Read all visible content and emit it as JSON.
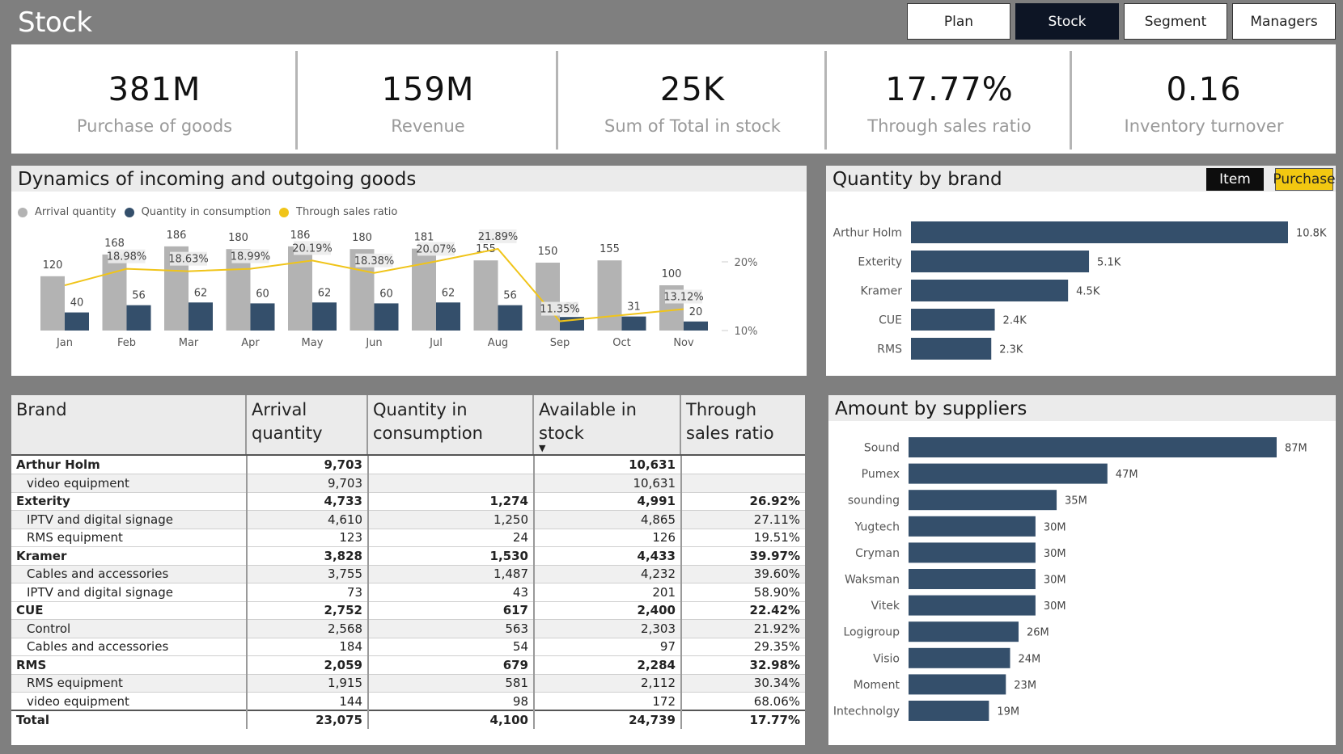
{
  "page": {
    "title": "Stock"
  },
  "nav": [
    {
      "label": "Plan",
      "active": false
    },
    {
      "label": "Stock",
      "active": true
    },
    {
      "label": "Segment",
      "active": false
    },
    {
      "label": "Managers",
      "active": false
    }
  ],
  "kpis": [
    {
      "value": "381M",
      "label": "Purchase of goods"
    },
    {
      "value": "159M",
      "label": "Revenue"
    },
    {
      "value": "25K",
      "label": "Sum of Total in stock"
    },
    {
      "value": "17.77%",
      "label": "Through sales ratio"
    },
    {
      "value": "0.16",
      "label": "Inventory turnover"
    }
  ],
  "colors": {
    "arrival": "#b3b3b3",
    "consumption": "#344f6b",
    "ratio": "#f0c419",
    "bar": "#344f6b",
    "toggle_active": "#0d0d0d",
    "toggle_alt": "#f2c811"
  },
  "dynamics": {
    "title": "Dynamics of incoming and outgoing goods",
    "legend": [
      "Arrival quantity",
      "Quantity in consumption",
      "Through sales ratio"
    ],
    "chart_data": {
      "type": "bar",
      "categories": [
        "Jan",
        "Feb",
        "Mar",
        "Apr",
        "May",
        "Jun",
        "Jul",
        "Aug",
        "Sep",
        "Oct",
        "Nov"
      ],
      "series": [
        {
          "name": "Arrival quantity",
          "values": [
            120,
            168,
            186,
            180,
            186,
            180,
            181,
            155,
            150,
            155,
            100
          ]
        },
        {
          "name": "Quantity in consumption",
          "values": [
            40,
            56,
            62,
            60,
            62,
            60,
            62,
            56,
            30,
            31,
            20
          ]
        },
        {
          "name": "Through sales ratio",
          "values": [
            null,
            18.98,
            18.63,
            18.99,
            20.19,
            18.38,
            20.07,
            21.89,
            11.35,
            null,
            13.12
          ],
          "labels": [
            "",
            "18.98%",
            "18.63%",
            "18.99%",
            "20.19%",
            "18.38%",
            "20.07%",
            "21.89%",
            "11.35%",
            "",
            "13.12%"
          ],
          "axis": "secondary"
        }
      ],
      "y2_ticks": [
        "20%",
        "10%"
      ]
    }
  },
  "brand_chart": {
    "title": "Quantity by brand",
    "toggle": [
      "Item",
      "Purchase"
    ],
    "chart_data": {
      "type": "bar",
      "orientation": "horizontal",
      "categories": [
        "Arthur Holm",
        "Exterity",
        "Kramer",
        "CUE",
        "RMS"
      ],
      "values": [
        10.8,
        5.1,
        4.5,
        2.4,
        2.3
      ],
      "labels": [
        "10.8K",
        "5.1K",
        "4.5K",
        "2.4K",
        "2.3K"
      ]
    }
  },
  "suppliers_chart": {
    "title": "Amount by suppliers",
    "chart_data": {
      "type": "bar",
      "orientation": "horizontal",
      "categories": [
        "Sound",
        "Pumex",
        "sounding",
        "Yugtech",
        "Cryman",
        "Waksman",
        "Vitek",
        "Logigroup",
        "Visio",
        "Moment",
        "Intechnolgy"
      ],
      "values": [
        87,
        47,
        35,
        30,
        30,
        30,
        30,
        26,
        24,
        23,
        19
      ],
      "labels": [
        "87M",
        "47M",
        "35M",
        "30M",
        "30M",
        "30M",
        "30M",
        "26M",
        "24M",
        "23M",
        "19M"
      ]
    }
  },
  "matrix": {
    "headers": [
      "Brand",
      "Arrival quantity",
      "Quantity in consumption",
      "Available in stock",
      "Through sales ratio"
    ],
    "rows": [
      {
        "level": "brand",
        "cells": [
          "Arthur Holm",
          "9,703",
          "",
          "10,631",
          ""
        ]
      },
      {
        "level": "sub",
        "cells": [
          "video equipment",
          "9,703",
          "",
          "10,631",
          ""
        ]
      },
      {
        "level": "brand",
        "cells": [
          "Exterity",
          "4,733",
          "1,274",
          "4,991",
          "26.92%"
        ]
      },
      {
        "level": "sub",
        "cells": [
          "IPTV and digital signage",
          "4,610",
          "1,250",
          "4,865",
          "27.11%"
        ]
      },
      {
        "level": "sub",
        "cells": [
          "RMS equipment",
          "123",
          "24",
          "126",
          "19.51%"
        ]
      },
      {
        "level": "brand",
        "cells": [
          "Kramer",
          "3,828",
          "1,530",
          "4,433",
          "39.97%"
        ]
      },
      {
        "level": "sub",
        "cells": [
          "Cables and accessories",
          "3,755",
          "1,487",
          "4,232",
          "39.60%"
        ]
      },
      {
        "level": "sub",
        "cells": [
          "IPTV and digital signage",
          "73",
          "43",
          "201",
          "58.90%"
        ]
      },
      {
        "level": "brand",
        "cells": [
          "CUE",
          "2,752",
          "617",
          "2,400",
          "22.42%"
        ]
      },
      {
        "level": "sub",
        "cells": [
          "Control",
          "2,568",
          "563",
          "2,303",
          "21.92%"
        ]
      },
      {
        "level": "sub",
        "cells": [
          "Cables and accessories",
          "184",
          "54",
          "97",
          "29.35%"
        ]
      },
      {
        "level": "brand",
        "cells": [
          "RMS",
          "2,059",
          "679",
          "2,284",
          "32.98%"
        ]
      },
      {
        "level": "sub",
        "cells": [
          "RMS equipment",
          "1,915",
          "581",
          "2,112",
          "30.34%"
        ]
      },
      {
        "level": "sub",
        "cells": [
          "video equipment",
          "144",
          "98",
          "172",
          "68.06%"
        ]
      },
      {
        "level": "total",
        "cells": [
          "Total",
          "23,075",
          "4,100",
          "24,739",
          "17.77%"
        ]
      }
    ]
  }
}
